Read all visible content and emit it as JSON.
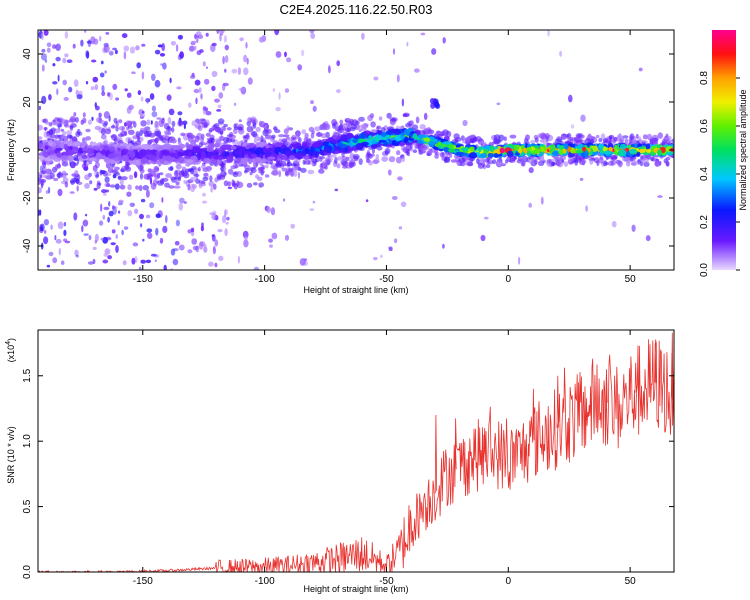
{
  "title": "C2E4.2025.116.22.50.R03",
  "top_panel": {
    "xlabel": "Height of straight line (km)",
    "ylabel": "Frequency (Hz)",
    "colorbar_label": "Normalized spectral amplitude",
    "xticks": [
      "-150",
      "-100",
      "-50",
      "0",
      "50"
    ],
    "yticks": [
      "40",
      "20",
      "0",
      "-20",
      "-40"
    ],
    "colorbar_ticks": [
      "0.8",
      "0.6",
      "0.4",
      "0.2",
      "0.0"
    ]
  },
  "bottom_panel": {
    "xlabel": "Height of straight line (km)",
    "ylabel": "SNR (10 * v/v)",
    "exponent_base": "(x10",
    "exponent_power": "4",
    "exponent_close": ")",
    "xticks": [
      "-150",
      "-100",
      "-50",
      "0",
      "50"
    ],
    "yticks": [
      "1.5",
      "1.0",
      "0.5",
      "0.0"
    ]
  },
  "colors": {
    "snr_line": "#e8322e",
    "spectrogram_sparse": "#b28ae8",
    "spectrogram_core": "#5a10e0"
  },
  "chart_data": [
    {
      "type": "heatmap",
      "title": "C2E4.2025.116.22.50.R03",
      "xlabel": "Height of straight line (km)",
      "ylabel": "Frequency (Hz)",
      "xlim": [
        -193,
        68
      ],
      "ylim": [
        -50,
        50
      ],
      "colorbar": {
        "label": "Normalized spectral amplitude",
        "range": [
          0,
          1
        ],
        "colormap": "rainbow (purple-blue-cyan-green-yellow-red-magenta)"
      },
      "ridge_center_hz": {
        "x": [
          -190,
          -150,
          -100,
          -80,
          -60,
          -50,
          -40,
          -30,
          -20,
          -10,
          0,
          20,
          40,
          68
        ],
        "y": [
          0,
          -2,
          -1,
          0,
          4,
          5,
          6,
          3,
          0,
          -1,
          0,
          0,
          0,
          0
        ]
      },
      "peak_amplitude": {
        "x": [
          -190,
          -150,
          -100,
          -80,
          -60,
          -40,
          -30,
          -20,
          0,
          20,
          40,
          68
        ],
        "y": [
          0.15,
          0.15,
          0.25,
          0.35,
          0.5,
          0.6,
          0.7,
          0.9,
          0.95,
          0.95,
          0.95,
          0.9
        ]
      }
    },
    {
      "type": "line",
      "xlabel": "Height of straight line (km)",
      "ylabel": "SNR (10 * v/v)",
      "xlim": [
        -193,
        68
      ],
      "ylim": [
        0,
        1.85
      ],
      "y_scale_factor": 10000,
      "series": [
        {
          "x": [
            -193,
            -180,
            -160,
            -140,
            -120,
            -100,
            -90,
            -80,
            -70,
            -60,
            -55,
            -50,
            -45,
            -40,
            -35,
            -30,
            -25,
            -20,
            -15,
            -10,
            -5,
            0,
            5,
            10,
            15,
            20,
            25,
            30,
            35,
            40,
            45,
            50,
            55,
            60,
            65,
            68
          ],
          "values": [
            0.0,
            0.0,
            0.0,
            0.01,
            0.03,
            0.04,
            0.05,
            0.07,
            0.1,
            0.14,
            0.1,
            0.05,
            0.15,
            0.35,
            0.5,
            0.6,
            0.75,
            0.8,
            0.88,
            0.9,
            0.92,
            0.85,
            0.9,
            1.0,
            1.05,
            1.1,
            1.15,
            1.2,
            1.3,
            1.3,
            1.25,
            1.35,
            1.4,
            1.45,
            1.4,
            1.3
          ],
          "peaks": {
            "x": [
              -30,
              -22,
              -10,
              10,
              20,
              40,
              52,
              60,
              67
            ],
            "y": [
              1.2,
              1.0,
              1.1,
              1.4,
              1.5,
              1.55,
              1.6,
              1.75,
              1.83
            ]
          }
        }
      ]
    }
  ]
}
